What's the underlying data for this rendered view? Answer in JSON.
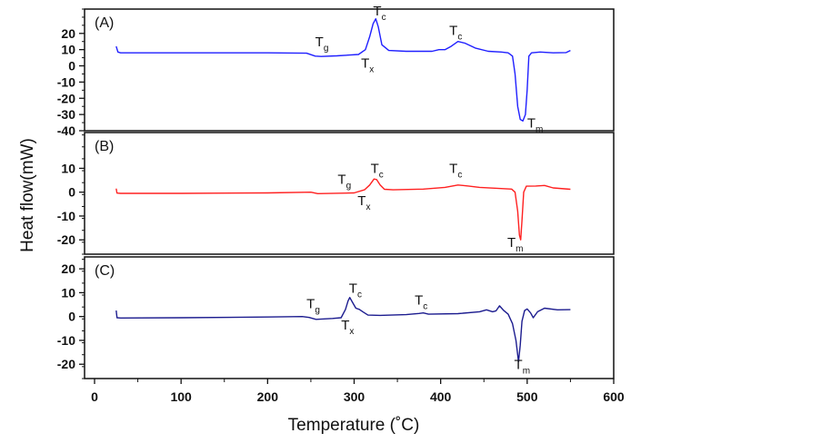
{
  "chart_data": {
    "type": "line",
    "title": "",
    "xlabel": "Temperature (˚C)",
    "ylabel": "Heat flow(mW)",
    "xlim": [
      0,
      600
    ],
    "xticks": [
      0,
      100,
      200,
      300,
      400,
      500,
      600
    ],
    "grid": false,
    "panels": [
      {
        "label": "(A)",
        "color": "#1f1fff",
        "ylim": [
          -40,
          35
        ],
        "yticks": [
          20,
          10,
          0,
          -10,
          -20,
          -30,
          -40
        ],
        "x": [
          25,
          27,
          30,
          100,
          200,
          245,
          255,
          262,
          280,
          305,
          313,
          318,
          322,
          325,
          328,
          332,
          340,
          360,
          390,
          398,
          405,
          412,
          420,
          428,
          440,
          455,
          470,
          478,
          483,
          486,
          489,
          492,
          495,
          498,
          500,
          502,
          505,
          515,
          530,
          545,
          550
        ],
        "y": [
          12,
          8.5,
          8,
          8,
          8,
          7.8,
          6,
          5.8,
          6.2,
          7,
          10,
          18,
          26,
          29,
          24,
          13,
          9.5,
          9,
          9,
          10,
          10,
          12,
          15,
          14,
          11,
          9,
          8.5,
          8,
          6,
          -5,
          -25,
          -33,
          -34,
          -30,
          -15,
          6,
          8,
          8.5,
          8,
          8.2,
          9.5
        ],
        "annotations": [
          {
            "t": "T",
            "sub": "g",
            "x": 255,
            "y": 12
          },
          {
            "t": "T",
            "sub": "x",
            "x": 308,
            "y": -1
          },
          {
            "t": "T",
            "sub": "c",
            "x": 322,
            "y": 31
          },
          {
            "t": "T",
            "sub": "c",
            "x": 410,
            "y": 19
          },
          {
            "t": "T",
            "sub": "m",
            "x": 500,
            "y": -38
          }
        ]
      },
      {
        "label": "(B)",
        "color": "#ff2020",
        "ylim": [
          -26,
          25
        ],
        "yticks": [
          10,
          0,
          -10,
          -20
        ],
        "x": [
          25,
          26,
          30,
          100,
          200,
          250,
          258,
          300,
          312,
          318,
          323,
          326,
          330,
          335,
          345,
          380,
          405,
          420,
          432,
          445,
          470,
          482,
          486,
          489,
          491,
          492.5,
          494,
          496,
          499,
          510,
          520,
          530,
          550
        ],
        "y": [
          1.5,
          -0.4,
          -0.5,
          -0.5,
          -0.3,
          0,
          -0.6,
          -0.3,
          1,
          3,
          5.5,
          5.3,
          3,
          1.2,
          1,
          1.3,
          2,
          3,
          2.6,
          2,
          1.5,
          1.3,
          0,
          -8,
          -18,
          -20,
          -12,
          0,
          2.5,
          2.6,
          2.8,
          1.8,
          1.2
        ],
        "annotations": [
          {
            "t": "T",
            "sub": "g",
            "x": 281,
            "y": 3.5
          },
          {
            "t": "T",
            "sub": "x",
            "x": 304,
            "y": -5.5
          },
          {
            "t": "T",
            "sub": "c",
            "x": 319,
            "y": 8
          },
          {
            "t": "T",
            "sub": "c",
            "x": 410,
            "y": 8
          },
          {
            "t": "T",
            "sub": "m",
            "x": 477,
            "y": -23
          }
        ]
      },
      {
        "label": "(C)",
        "color": "#1c1c8f",
        "ylim": [
          -26,
          25
        ],
        "yticks": [
          20,
          10,
          0,
          -10,
          -20
        ],
        "x": [
          25,
          26,
          30,
          100,
          200,
          240,
          248,
          256,
          275,
          285,
          290,
          293,
          295,
          298,
          302,
          306,
          310,
          316,
          330,
          360,
          375,
          380,
          386,
          420,
          445,
          453,
          460,
          464,
          468,
          473,
          478,
          483,
          487,
          490,
          492,
          494,
          497,
          500,
          504,
          507,
          512,
          520,
          535,
          550
        ],
        "y": [
          2.5,
          -0.5,
          -0.6,
          -0.5,
          -0.2,
          0,
          -0.4,
          -1.2,
          -0.8,
          -0.5,
          3,
          6.5,
          8,
          6,
          3.5,
          3,
          2,
          0.6,
          0.5,
          0.8,
          1.3,
          1.5,
          1,
          1.2,
          2,
          2.8,
          2,
          2.4,
          4.5,
          2.5,
          1,
          -3,
          -10,
          -19,
          -12,
          -2,
          2.5,
          3.2,
          1.5,
          -0.5,
          2,
          3.5,
          2.8,
          2.9
        ],
        "annotations": [
          {
            "t": "T",
            "sub": "g",
            "x": 245,
            "y": 3.5
          },
          {
            "t": "T",
            "sub": "x",
            "x": 285,
            "y": -5.5
          },
          {
            "t": "T",
            "sub": "c",
            "x": 294,
            "y": 10
          },
          {
            "t": "T",
            "sub": "c",
            "x": 370,
            "y": 5
          },
          {
            "t": "T",
            "sub": "m",
            "x": 485,
            "y": -22
          }
        ]
      }
    ]
  }
}
